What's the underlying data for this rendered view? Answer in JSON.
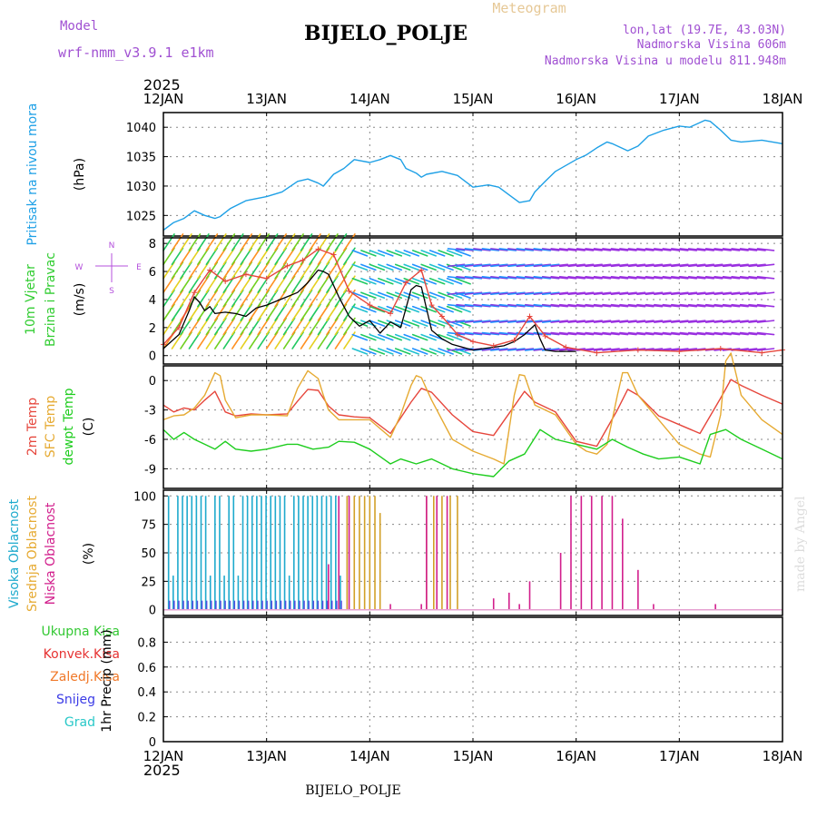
{
  "header": {
    "model_label": "Model",
    "model_name": "wrf-nmm_v3.9.1  e1km",
    "title": "BIJELO_POLJE",
    "subtitle": "Meteogram",
    "coords": "lon,lat (19.7E, 43.03N)",
    "elevation": "Nadmorska Visina 606m",
    "model_elevation": "Nadmorska Visina u modelu 811.948m",
    "year_top": "2025",
    "year_bottom": "2025",
    "footer_station": "BIJELO_POLJE",
    "credit": "made by Angel"
  },
  "colors": {
    "pressure": "#1ea0e6",
    "temp2m": "#e6463c",
    "sfc_temp": "#e6aa32",
    "dewpt": "#1ecd1e",
    "wind_speed": "#000000",
    "gust": "#e6463c",
    "cloud_high": "#1eaacd",
    "cloud_mid": "#d2a028",
    "cloud_low": "#d21e8c",
    "wind_label": "#32cd32",
    "compass": "#b450dc",
    "header_purple": "#a050d2",
    "subtitle": "#e6c896",
    "precip_total": "#32c832",
    "precip_conv": "#e63232",
    "precip_freezing": "#f07828",
    "precip_snow": "#3c3ce6",
    "precip_grad": "#28c8c8",
    "credit": "#dcdcdc"
  },
  "chart_data": {
    "type": "line",
    "x_ticks": [
      "12JAN",
      "13JAN",
      "14JAN",
      "15JAN",
      "16JAN",
      "17JAN",
      "18JAN"
    ],
    "x_range_days": [
      0,
      6
    ],
    "panels": [
      {
        "id": "pressure",
        "ylabel_parts": [
          "Pritisak na nivou mora",
          "(hPa)"
        ],
        "ylim": [
          1021.5,
          1042.5
        ],
        "yticks": [
          1025,
          1030,
          1035,
          1040
        ],
        "series": [
          {
            "color_key": "pressure",
            "x": [
              0,
              0.1,
              0.2,
              0.3,
              0.4,
              0.5,
              0.55,
              0.65,
              0.8,
              1.0,
              1.15,
              1.3,
              1.4,
              1.5,
              1.55,
              1.65,
              1.75,
              1.85,
              2.0,
              2.1,
              2.2,
              2.3,
              2.35,
              2.45,
              2.5,
              2.55,
              2.7,
              2.85,
              3.0,
              3.15,
              3.25,
              3.35,
              3.45,
              3.55,
              3.6,
              3.7,
              3.8,
              3.9,
              4.0,
              4.1,
              4.2,
              4.3,
              4.35,
              4.5,
              4.6,
              4.7,
              4.85,
              5.0,
              5.1,
              5.2,
              5.25,
              5.3,
              5.4,
              5.5,
              5.6,
              5.8,
              6.0
            ],
            "y": [
              1022.5,
              1023.8,
              1024.5,
              1025.8,
              1025,
              1024.5,
              1024.8,
              1026.2,
              1027.5,
              1028.2,
              1029,
              1030.8,
              1031.2,
              1030.5,
              1030,
              1032,
              1033,
              1034.5,
              1034,
              1034.5,
              1035.2,
              1034.5,
              1033,
              1032.2,
              1031.5,
              1032,
              1032.5,
              1031.8,
              1029.8,
              1030.2,
              1029.8,
              1028.5,
              1027.2,
              1027.5,
              1029,
              1030.8,
              1032.5,
              1033.5,
              1034.5,
              1035.3,
              1036.5,
              1037.5,
              1037.2,
              1036,
              1036.8,
              1038.5,
              1039.5,
              1040.2,
              1040,
              1040.8,
              1041.2,
              1041,
              1039.5,
              1037.8,
              1037.5,
              1037.8,
              1037.2
            ]
          }
        ]
      },
      {
        "id": "wind",
        "ylabel_parts": [
          "10m Vjetar",
          "Brzina i Pravac",
          "(m/s)"
        ],
        "ylim": [
          -0.6,
          8.4
        ],
        "yticks": [
          0,
          2,
          4,
          6,
          8
        ],
        "compass": [
          "N",
          "E",
          "S",
          "W"
        ],
        "series": [
          {
            "name": "wind_speed",
            "color_key": "wind_speed",
            "x": [
              0,
              0.15,
              0.25,
              0.3,
              0.35,
              0.4,
              0.45,
              0.5,
              0.6,
              0.7,
              0.8,
              0.9,
              1.0,
              1.1,
              1.2,
              1.3,
              1.4,
              1.5,
              1.55,
              1.6,
              1.7,
              1.8,
              1.9,
              2.0,
              2.1,
              2.2,
              2.3,
              2.4,
              2.45,
              2.5,
              2.6,
              2.7,
              2.8,
              2.9,
              3.0,
              3.1,
              3.2,
              3.3,
              3.4,
              3.5,
              3.6,
              3.65,
              3.7,
              3.8,
              4.0
            ],
            "y": [
              0.5,
              1.5,
              3.2,
              4.2,
              3.8,
              3.2,
              3.5,
              3.0,
              3.1,
              3.0,
              2.8,
              3.4,
              3.6,
              3.9,
              4.2,
              4.5,
              5.2,
              6.1,
              6.0,
              5.8,
              4.2,
              2.8,
              2.1,
              2.5,
              1.6,
              2.4,
              2.0,
              4.7,
              5.0,
              4.9,
              1.8,
              1.2,
              0.8,
              0.6,
              0.4,
              0.5,
              0.6,
              0.7,
              1.0,
              1.5,
              2.2,
              1.2,
              0.4,
              0.3,
              0.3
            ]
          },
          {
            "name": "gust",
            "color_key": "gust",
            "x": [
              0,
              0.15,
              0.3,
              0.45,
              0.6,
              0.8,
              1.0,
              1.2,
              1.35,
              1.5,
              1.65,
              1.8,
              2.0,
              2.2,
              2.35,
              2.5,
              2.6,
              2.7,
              2.85,
              3.0,
              3.2,
              3.4,
              3.55,
              3.7,
              3.9,
              4.2,
              4.6,
              5.0,
              5.4,
              5.8,
              6.0
            ],
            "y": [
              0.8,
              2.0,
              4.5,
              6.1,
              5.3,
              5.8,
              5.5,
              6.4,
              6.8,
              7.6,
              7.2,
              4.6,
              3.6,
              3.0,
              5.2,
              6.1,
              3.6,
              2.8,
              1.5,
              1.0,
              0.7,
              1.1,
              2.8,
              1.4,
              0.6,
              0.2,
              0.4,
              0.3,
              0.5,
              0.2,
              0.4
            ]
          }
        ],
        "barb_rows_ms": [
          0.5,
          1.5,
          2.5,
          3.5,
          4.5,
          5.5,
          6.5,
          7.5
        ]
      },
      {
        "id": "temperature",
        "ylabel_parts": [
          "2m Temp",
          "SFC Temp",
          "dewpt Temp",
          "(C)"
        ],
        "ylim": [
          -11,
          1.5
        ],
        "yticks": [
          0,
          -3,
          -6,
          -9
        ],
        "series": [
          {
            "name": "2m Temp",
            "color_key": "temp2m",
            "x": [
              0,
              0.1,
              0.2,
              0.3,
              0.4,
              0.5,
              0.6,
              0.7,
              0.85,
              1.0,
              1.2,
              1.3,
              1.4,
              1.5,
              1.6,
              1.7,
              1.85,
              2.0,
              2.2,
              2.4,
              2.5,
              2.6,
              2.8,
              3.0,
              3.2,
              3.4,
              3.5,
              3.6,
              3.8,
              4.0,
              4.2,
              4.4,
              4.5,
              4.6,
              4.8,
              5.0,
              5.2,
              5.4,
              5.5,
              5.6,
              5.8,
              6.0
            ],
            "y": [
              -2.5,
              -3.2,
              -2.8,
              -3.0,
              -2.0,
              -1.1,
              -3.2,
              -3.6,
              -3.4,
              -3.5,
              -3.4,
              -2.1,
              -0.9,
              -1.0,
              -2.6,
              -3.5,
              -3.7,
              -3.8,
              -5.4,
              -2.2,
              -0.8,
              -1.2,
              -3.5,
              -5.2,
              -5.6,
              -2.6,
              -1.1,
              -2.2,
              -3.2,
              -6.2,
              -6.7,
              -3.0,
              -0.9,
              -1.5,
              -3.6,
              -4.5,
              -5.4,
              -1.8,
              0.1,
              -0.5,
              -1.5,
              -2.4
            ]
          },
          {
            "name": "SFC Temp",
            "color_key": "sfc_temp",
            "x": [
              0,
              0.1,
              0.2,
              0.3,
              0.4,
              0.5,
              0.55,
              0.6,
              0.7,
              0.85,
              1.0,
              1.2,
              1.3,
              1.4,
              1.5,
              1.55,
              1.6,
              1.7,
              1.85,
              2.0,
              2.2,
              2.3,
              2.4,
              2.45,
              2.5,
              2.6,
              2.8,
              3.0,
              3.2,
              3.3,
              3.4,
              3.45,
              3.5,
              3.6,
              3.8,
              4.0,
              4.1,
              4.2,
              4.3,
              4.4,
              4.45,
              4.5,
              4.6,
              4.8,
              5.0,
              5.2,
              5.3,
              5.4,
              5.45,
              5.5,
              5.6,
              5.8,
              6.0
            ],
            "y": [
              -4.0,
              -3.6,
              -3.5,
              -2.8,
              -1.5,
              0.8,
              0.5,
              -2.0,
              -3.8,
              -3.5,
              -3.5,
              -3.6,
              -0.8,
              1.0,
              0.2,
              -1.5,
              -3.0,
              -4.0,
              -4.0,
              -4.0,
              -5.8,
              -3.5,
              -0.5,
              0.5,
              0.3,
              -2.0,
              -6.0,
              -7.2,
              -8.0,
              -8.5,
              -1.5,
              0.6,
              0.5,
              -2.5,
              -3.5,
              -6.5,
              -7.2,
              -7.5,
              -6.5,
              -1.5,
              0.8,
              0.8,
              -1.5,
              -4.0,
              -6.5,
              -7.5,
              -7.8,
              -3.5,
              2.0,
              2.8,
              -1.5,
              -4.0,
              -5.5
            ]
          },
          {
            "name": "dewpt Temp",
            "color_key": "dewpt",
            "x": [
              0,
              0.1,
              0.2,
              0.3,
              0.4,
              0.5,
              0.6,
              0.7,
              0.85,
              1.0,
              1.2,
              1.3,
              1.45,
              1.6,
              1.7,
              1.85,
              2.0,
              2.2,
              2.3,
              2.45,
              2.6,
              2.8,
              3.0,
              3.2,
              3.35,
              3.5,
              3.65,
              3.8,
              4.0,
              4.2,
              4.35,
              4.5,
              4.65,
              4.8,
              5.0,
              5.2,
              5.3,
              5.45,
              5.6,
              5.8,
              6.0
            ],
            "y": [
              -5.0,
              -6.0,
              -5.3,
              -6.0,
              -6.5,
              -7.0,
              -6.2,
              -7.0,
              -7.2,
              -7.0,
              -6.5,
              -6.5,
              -7.0,
              -6.8,
              -6.2,
              -6.3,
              -7.0,
              -8.5,
              -8.0,
              -8.5,
              -8.0,
              -9.0,
              -9.5,
              -9.8,
              -8.2,
              -7.5,
              -5.0,
              -6.0,
              -6.5,
              -7.0,
              -6.0,
              -6.8,
              -7.5,
              -8.0,
              -7.8,
              -8.5,
              -5.5,
              -5.0,
              -6.0,
              -7.0,
              -8.0
            ]
          }
        ]
      },
      {
        "id": "clouds",
        "ylabel_parts": [
          "Visoka Oblacnost",
          "Srednja Oblacnost",
          "Niska Oblacnost",
          "(%)"
        ],
        "ylim": [
          -5,
          105
        ],
        "yticks": [
          0,
          25,
          50,
          75,
          100
        ],
        "high_bars_until_day": 1.75,
        "mid_bars": [
          [
            1.78,
            100
          ],
          [
            1.85,
            100
          ],
          [
            1.9,
            100
          ],
          [
            1.95,
            100
          ],
          [
            2.0,
            100
          ],
          [
            2.05,
            100
          ],
          [
            2.1,
            85
          ],
          [
            2.55,
            100
          ],
          [
            2.62,
            100
          ],
          [
            2.7,
            100
          ],
          [
            2.78,
            100
          ],
          [
            2.85,
            100
          ]
        ],
        "low_bars": [
          [
            1.6,
            40
          ],
          [
            1.7,
            100
          ],
          [
            1.8,
            100
          ],
          [
            2.2,
            5
          ],
          [
            2.5,
            5
          ],
          [
            2.55,
            100
          ],
          [
            2.65,
            100
          ],
          [
            2.75,
            100
          ],
          [
            3.2,
            10
          ],
          [
            3.35,
            15
          ],
          [
            3.45,
            5
          ],
          [
            3.55,
            25
          ],
          [
            3.85,
            50
          ],
          [
            3.95,
            100
          ],
          [
            4.05,
            100
          ],
          [
            4.15,
            100
          ],
          [
            4.25,
            100
          ],
          [
            4.35,
            100
          ],
          [
            4.45,
            80
          ],
          [
            4.6,
            35
          ],
          [
            4.75,
            5
          ],
          [
            5.35,
            5
          ]
        ]
      },
      {
        "id": "precip",
        "ylabel_parts": [
          "1hr Precip (mm)"
        ],
        "ylim": [
          0,
          1.0
        ],
        "yticks": [
          0,
          0.2,
          0.4,
          0.6,
          0.8
        ],
        "legend": [
          "Ukupna Kisa",
          "Konvek.Kisa",
          "Zaledj.Kisa",
          "Snijeg",
          "Grad"
        ],
        "series": []
      }
    ]
  }
}
